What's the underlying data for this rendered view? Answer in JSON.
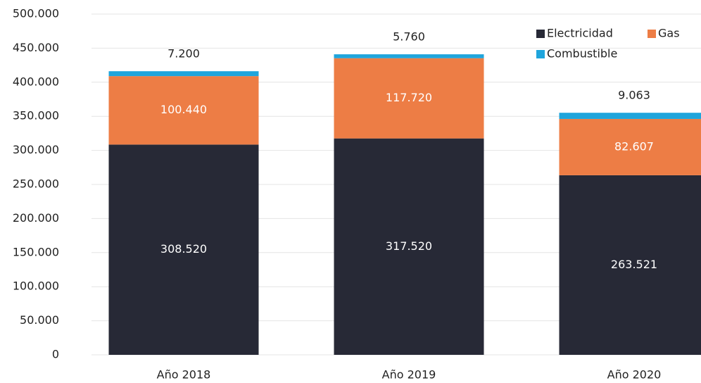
{
  "chart_data": {
    "type": "bar",
    "stacked": true,
    "categories": [
      "Año 2018",
      "Año 2019",
      "Año 2020"
    ],
    "series": [
      {
        "name": "Electricidad",
        "color": "#272936",
        "values": [
          308520,
          317520,
          263521
        ],
        "value_labels": [
          "308.520",
          "317.520",
          "263.521"
        ]
      },
      {
        "name": "Gas",
        "color": "#ed7d45",
        "values": [
          100440,
          117720,
          82607
        ],
        "value_labels": [
          "100.440",
          "117.720",
          "82.607"
        ]
      },
      {
        "name": "Combustible",
        "color": "#1fa5dc",
        "values": [
          7200,
          5760,
          9063
        ],
        "value_labels": [
          "7.200",
          "5.760",
          "9.063"
        ]
      }
    ],
    "ylim": [
      0,
      500000
    ],
    "yticks": [
      0,
      {
        "value": 50000,
        "label": "50.000"
      },
      {
        "value": 100000,
        "label": "100.000"
      },
      {
        "value": 150000,
        "label": "150.000"
      },
      {
        "value": 200000,
        "label": "200.000"
      },
      {
        "value": 250000,
        "label": "250.000"
      },
      {
        "value": 300000,
        "label": "300.000"
      },
      {
        "value": 350000,
        "label": "350.000"
      },
      {
        "value": 400000,
        "label": "400.000"
      },
      {
        "value": 450000,
        "label": "450.000"
      },
      {
        "value": 500000,
        "label": "500.000"
      }
    ],
    "grid": true,
    "legend": "top-right"
  }
}
